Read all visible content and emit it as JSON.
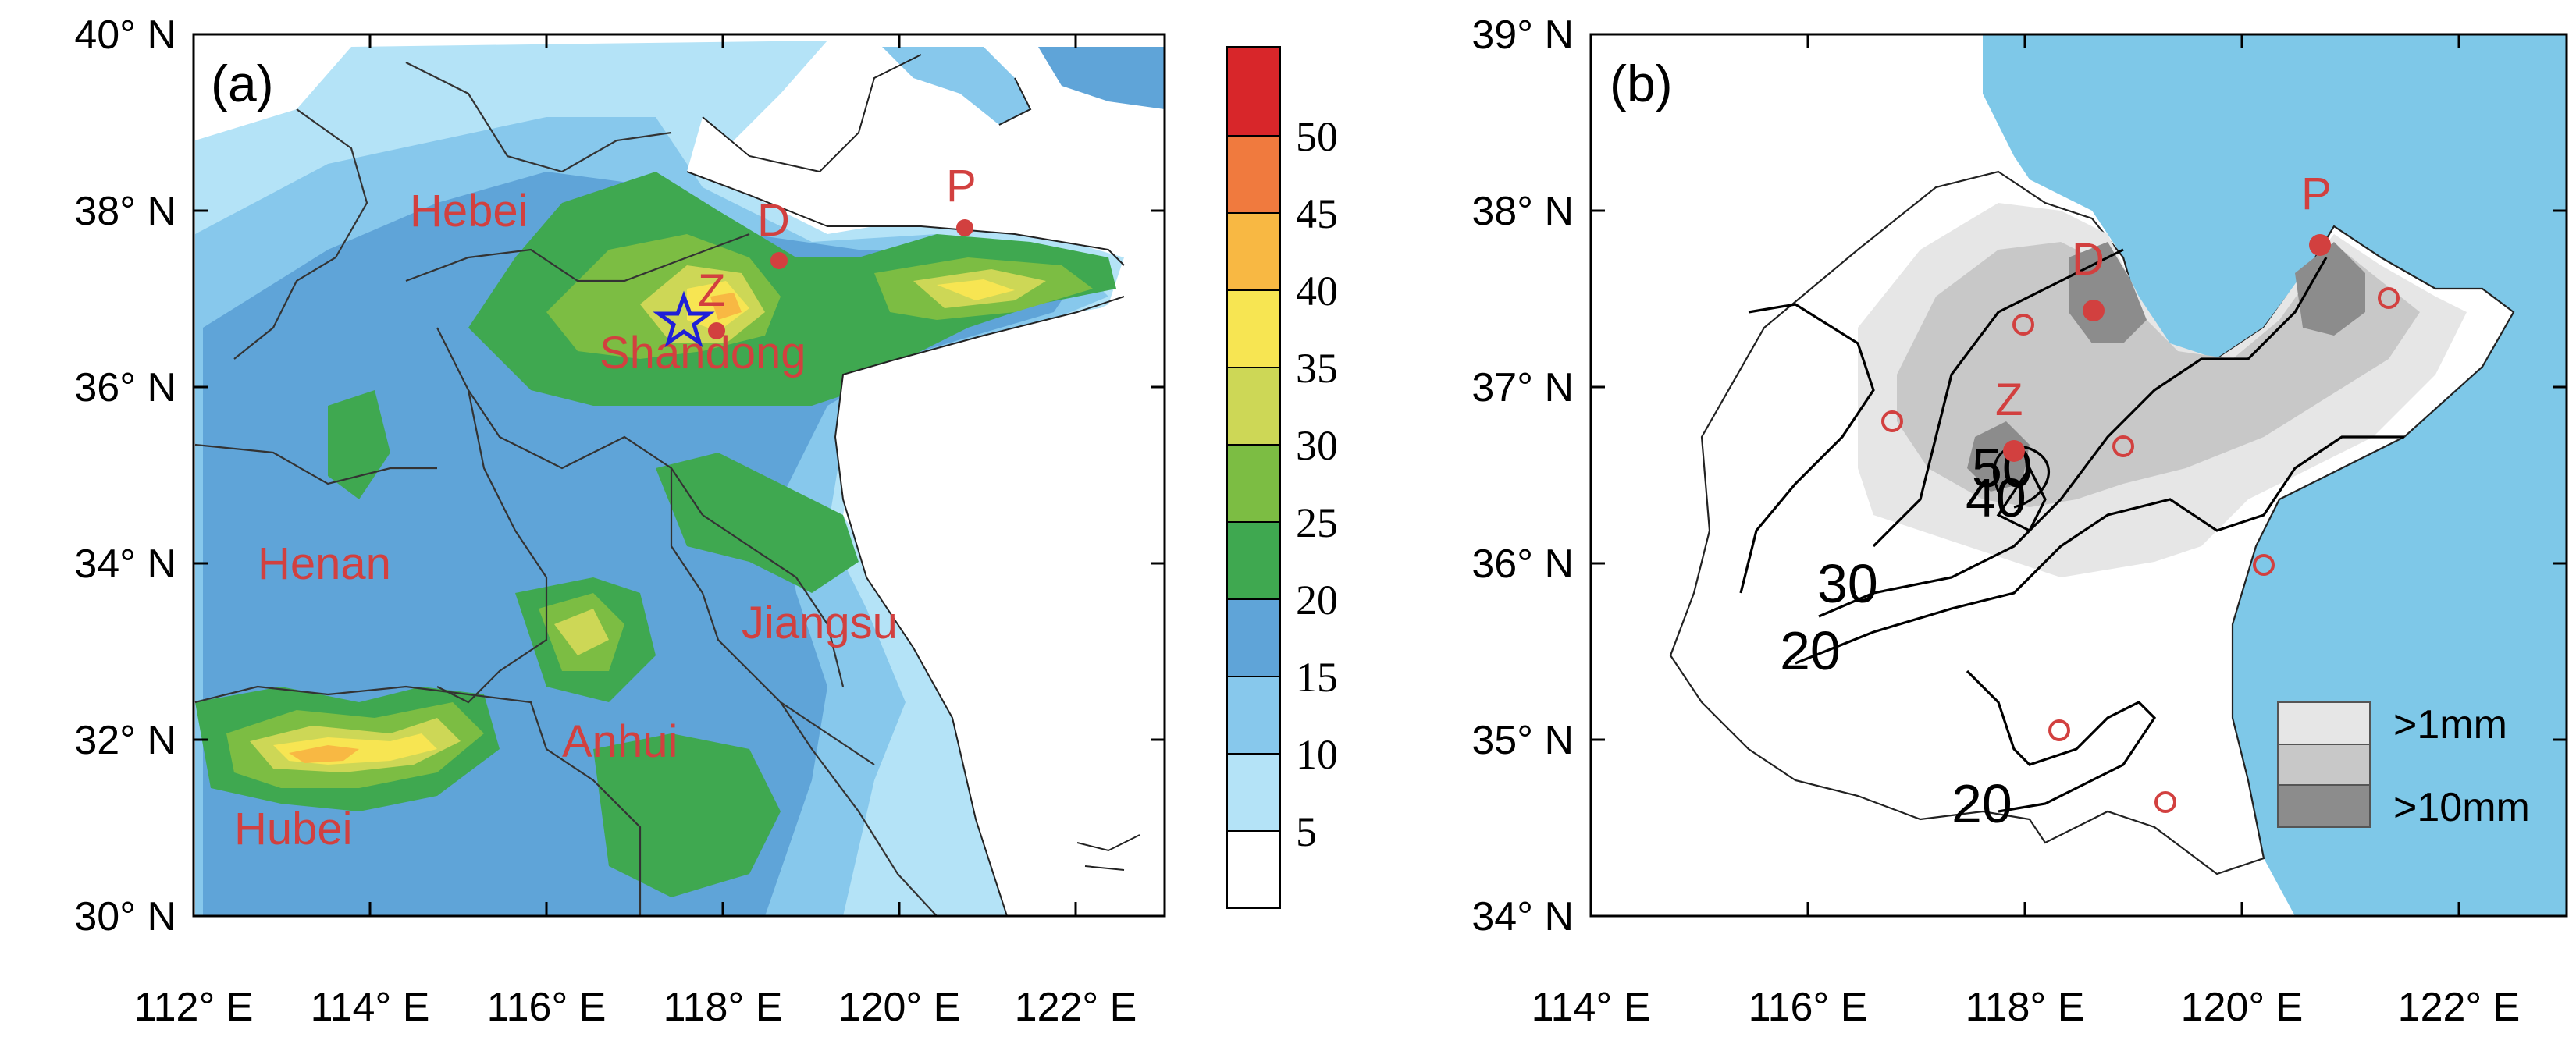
{
  "panel_a": {
    "label": "(a)",
    "lat_ticks": [
      "30° N",
      "32° N",
      "34° N",
      "36° N",
      "38° N",
      "40° N"
    ],
    "lon_ticks": [
      "112° E",
      "114° E",
      "116° E",
      "118° E",
      "120° E",
      "122° E"
    ],
    "provinces": [
      "Hebei",
      "Shandong",
      "Henan",
      "Jiangsu",
      "Anhui",
      "Hubei"
    ],
    "stations": [
      "D",
      "Z",
      "P"
    ],
    "colorbar": {
      "labels": [
        "5",
        "10",
        "15",
        "20",
        "25",
        "30",
        "35",
        "40",
        "45",
        "50"
      ],
      "colors": [
        "#ffffff",
        "#b4e3f7",
        "#87c8ec",
        "#5fa4d8",
        "#3fa850",
        "#7cbd43",
        "#cdd756",
        "#f7e552",
        "#f8b843",
        "#f07a3e",
        "#d8262a"
      ]
    },
    "marker": "star-icon"
  },
  "panel_b": {
    "label": "(b)",
    "lat_ticks": [
      "34° N",
      "35° N",
      "36° N",
      "37° N",
      "38° N",
      "39° N"
    ],
    "lon_ticks": [
      "114° E",
      "116° E",
      "118° E",
      "120° E",
      "122° E"
    ],
    "stations": [
      "D",
      "Z",
      "P"
    ],
    "contour_labels": [
      "50",
      "40",
      "30",
      "20",
      "20"
    ],
    "legend": [
      ">1mm",
      ">10mm"
    ],
    "colors": {
      "sea": "#7ec8e8",
      "light": "#e6e6e6",
      "mid": "#c8c8c8",
      "dark": "#8c8c8c",
      "station": "#d2403f"
    }
  }
}
